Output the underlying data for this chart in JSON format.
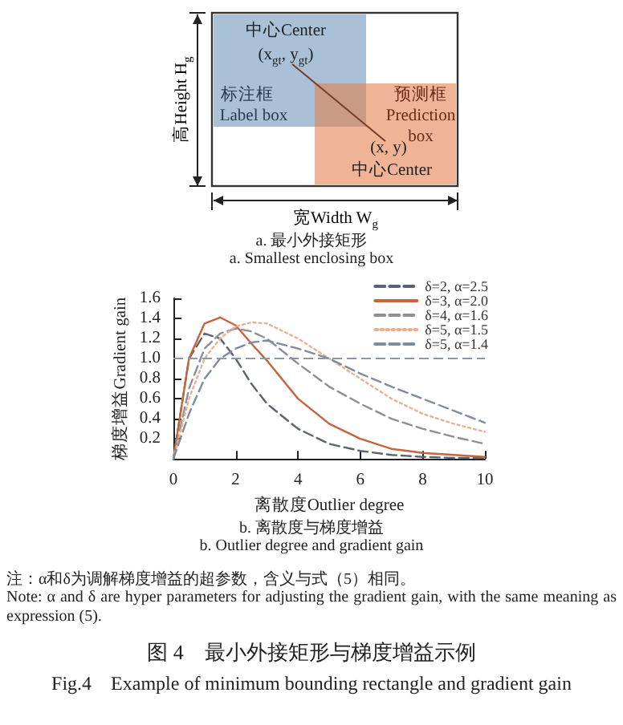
{
  "chart_data": {
    "type": "line",
    "title": "图 4　最小外接矩形与梯度增益示例",
    "subtitle": "Fig.4　Example of minimum bounding rectangle and gradient gain",
    "xlabel": "离散度Outlier degree",
    "ylabel": "梯度增益Gradient gain",
    "annotations": [
      "中心Center",
      "(x$_{gt}$, y$_{gt}$)",
      "标注框",
      "Label box",
      "预测框",
      "Prediction box",
      "(x, y)",
      "中心Center",
      "高Height H$_{g}$",
      "宽Width W$_{g}$",
      "a. 最小外接矩形",
      "a. Smallest enclosing box",
      "b. 离散度与梯度增益",
      "b. Outlier degree and gradient gain",
      "注：α和δ为调解梯度增益的超参数，含义与式（5）相同。",
      "Note: α and δ are hyper parameters for adjusting the gradient gain, with the same meaning as expression (5)."
    ],
    "x": [
      0,
      0.5,
      1,
      1.5,
      2,
      2.5,
      3,
      4,
      5,
      6,
      7,
      8,
      9,
      10
    ],
    "series": [
      {
        "name": "δ=2, α=2.5",
        "color": "#5a6470",
        "line_style": "dashed",
        "values": [
          0,
          1.0,
          1.25,
          1.2,
          1.0,
          0.75,
          0.55,
          0.3,
          0.15,
          0.08,
          0.04,
          0.02,
          0.01,
          0.01
        ]
      },
      {
        "name": "δ=3, α=2.0",
        "color": "#c8643c",
        "line_style": "solid",
        "values": [
          0,
          1.0,
          1.35,
          1.41,
          1.33,
          1.15,
          0.98,
          0.6,
          0.35,
          0.2,
          0.1,
          0.06,
          0.04,
          0.02
        ]
      },
      {
        "name": "δ=4, α=1.6",
        "color": "#8a9098",
        "line_style": "dashed",
        "values": [
          0,
          0.7,
          1.1,
          1.25,
          1.3,
          1.27,
          1.2,
          0.95,
          0.72,
          0.55,
          0.4,
          0.3,
          0.22,
          0.15
        ]
      },
      {
        "name": "δ=5, α=1.5",
        "color": "#e8b090",
        "line_style": "dotted",
        "values": [
          0,
          0.6,
          1.0,
          1.2,
          1.32,
          1.36,
          1.35,
          1.2,
          1.0,
          0.8,
          0.6,
          0.45,
          0.35,
          0.27
        ]
      },
      {
        "name": "δ=5, α=1.4",
        "color": "#7e8c9e",
        "line_style": "dashed",
        "values": [
          0,
          0.45,
          0.8,
          1.0,
          1.1,
          1.16,
          1.18,
          1.1,
          1.0,
          0.85,
          0.72,
          0.6,
          0.48,
          0.36
        ]
      }
    ],
    "ref_lines": [
      {
        "axis": "y",
        "value": 1.0,
        "color": "#8a9aa8",
        "line_style": "dashed"
      }
    ],
    "xlim": [
      0,
      10
    ],
    "xticks": [
      0,
      2,
      4,
      6,
      8,
      10
    ],
    "ylim": [
      0,
      1.6
    ],
    "yticks": [
      {
        "value": 0,
        "label": null
      },
      0.2,
      0.4,
      0.6,
      0.8,
      {
        "value": 1.0,
        "label": "1.0"
      },
      1.2,
      1.4,
      1.6
    ],
    "grid": false,
    "legend": "top right",
    "marker": "none"
  }
}
